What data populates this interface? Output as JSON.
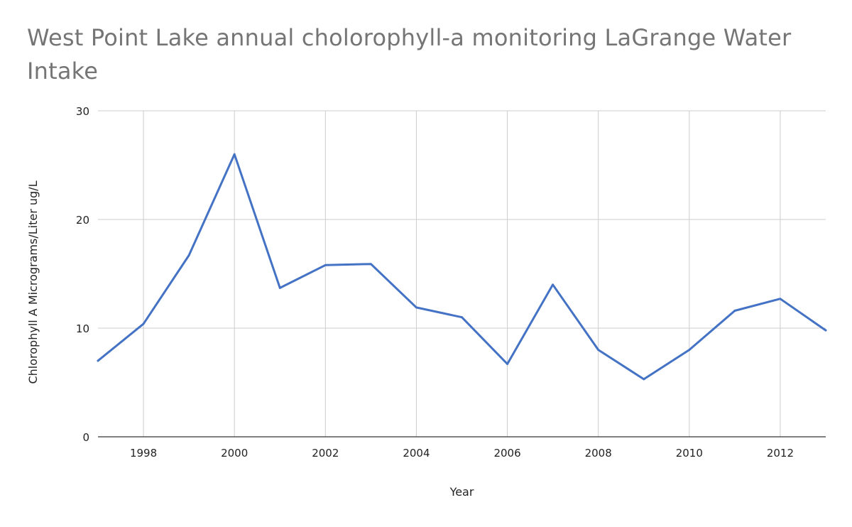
{
  "chart_data": {
    "type": "line",
    "title": "West Point Lake annual cholorophyll-a monitoring LaGrange Water Intake",
    "xlabel": "Year",
    "ylabel": "Chlorophyll A Micrograms/Liter  ug/L",
    "xlim": [
      1997,
      2013
    ],
    "ylim": [
      0,
      30
    ],
    "x_ticks": [
      1998,
      2000,
      2002,
      2004,
      2006,
      2008,
      2010,
      2012
    ],
    "y_ticks": [
      0,
      10,
      20,
      30
    ],
    "grid": true,
    "legend": "none",
    "series": [
      {
        "color": "#4472c4",
        "points": [
          {
            "x": 1997,
            "y": 7.0
          },
          {
            "x": 1998,
            "y": 10.4
          },
          {
            "x": 1999,
            "y": 16.7
          },
          {
            "x": 2000,
            "y": 26.0
          },
          {
            "x": 2001,
            "y": 13.7
          },
          {
            "x": 2002,
            "y": 15.8
          },
          {
            "x": 2003,
            "y": 15.9
          },
          {
            "x": 2004,
            "y": 11.9
          },
          {
            "x": 2005,
            "y": 11.0
          },
          {
            "x": 2006,
            "y": 6.7
          },
          {
            "x": 2007,
            "y": 14.0
          },
          {
            "x": 2008,
            "y": 8.0
          },
          {
            "x": 2009,
            "y": 5.3
          },
          {
            "x": 2010,
            "y": 8.0
          },
          {
            "x": 2011,
            "y": 11.6
          },
          {
            "x": 2012,
            "y": 12.7
          },
          {
            "x": 2013,
            "y": 9.8
          }
        ]
      }
    ]
  }
}
